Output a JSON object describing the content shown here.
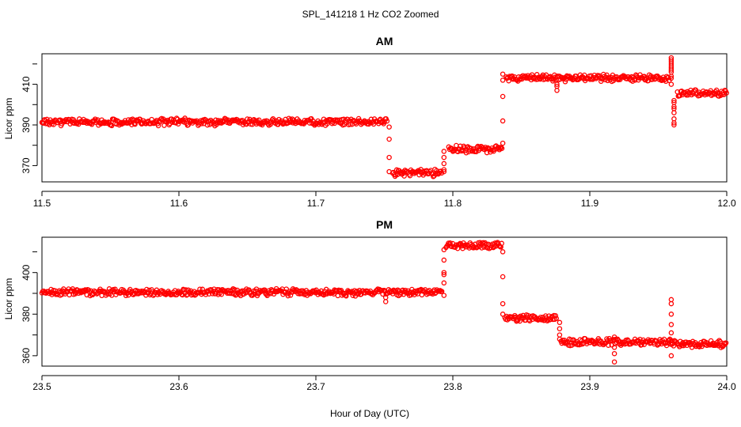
{
  "figure": {
    "title": "SPL_141218  1 Hz CO2 Zoomed",
    "xlabel": "Hour of Day (UTC)"
  },
  "colors": {
    "points": "#ff0000",
    "frame": "#000000",
    "background": "#ffffff"
  },
  "chart_data": [
    {
      "type": "scatter",
      "title": "AM",
      "xlabel": "Hour of Day (UTC)",
      "ylabel": "Licor ppm",
      "xlim": [
        11.5,
        12.0
      ],
      "ylim": [
        362,
        425
      ],
      "xticks": [
        "11.5",
        "11.6",
        "11.7",
        "11.8",
        "11.9",
        "12.0"
      ],
      "yticks": [
        "370",
        "390",
        "410"
      ],
      "grid": false,
      "legend": "none",
      "segments": [
        {
          "x": [
            11.5,
            11.752
          ],
          "y": 391.5
        },
        {
          "x": [
            11.756,
            11.792
          ],
          "y": 366.5
        },
        {
          "x": [
            11.797,
            11.836
          ],
          "y": 378
        },
        {
          "x": [
            11.839,
            11.958
          ],
          "y": 413
        },
        {
          "x": [
            11.964,
            12.0
          ],
          "y": 405.5
        }
      ],
      "transitions": [
        {
          "x": 11.7535,
          "y": [
            389,
            383,
            374,
            367
          ]
        },
        {
          "x": 11.7935,
          "y": [
            367,
            368,
            371,
            374,
            377
          ]
        },
        {
          "x": 11.8365,
          "y": [
            381,
            392,
            404,
            412,
            415
          ]
        },
        {
          "x": 11.876,
          "y": [
            409,
            407,
            410
          ]
        },
        {
          "x": 11.9595,
          "y": [
            414,
            417,
            419,
            421,
            422,
            423,
            420,
            418,
            416,
            413,
            410
          ]
        },
        {
          "x": 11.9615,
          "y": [
            401,
            399,
            396,
            393,
            391,
            390,
            398,
            402
          ]
        }
      ]
    },
    {
      "type": "scatter",
      "title": "PM",
      "xlabel": "Hour of Day (UTC)",
      "ylabel": "Licor ppm",
      "xlim": [
        23.5,
        24.0
      ],
      "ylim": [
        355,
        417
      ],
      "xticks": [
        "23.5",
        "23.6",
        "23.7",
        "23.8",
        "23.9",
        "24.0"
      ],
      "yticks": [
        "360",
        "380",
        "400"
      ],
      "grid": false,
      "legend": "none",
      "segments": [
        {
          "x": [
            23.5,
            23.792
          ],
          "y": 390.5
        },
        {
          "x": [
            23.795,
            23.836
          ],
          "y": 413
        },
        {
          "x": [
            23.838,
            23.876
          ],
          "y": 378
        },
        {
          "x": [
            23.879,
            23.96
          ],
          "y": 366.5
        },
        {
          "x": [
            23.96,
            24.0
          ],
          "y": 365.5
        }
      ],
      "transitions": [
        {
          "x": 23.751,
          "y": [
            388,
            386
          ]
        },
        {
          "x": 23.7935,
          "y": [
            389,
            395,
            400,
            399,
            406,
            411
          ]
        },
        {
          "x": 23.8365,
          "y": [
            410,
            398,
            385,
            380
          ]
        },
        {
          "x": 23.878,
          "y": [
            376,
            373,
            370,
            368
          ]
        },
        {
          "x": 23.918,
          "y": [
            369,
            364,
            361,
            357
          ]
        },
        {
          "x": 23.9595,
          "y": [
            387,
            385,
            380,
            375,
            371,
            360
          ]
        }
      ]
    }
  ]
}
